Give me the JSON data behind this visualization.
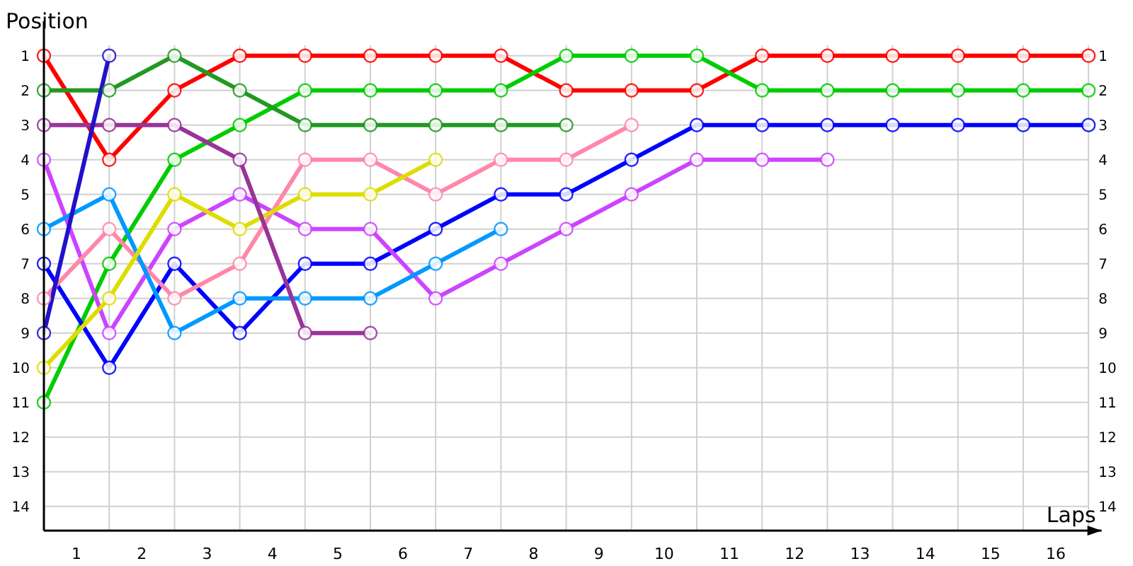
{
  "chart_data": {
    "type": "line",
    "xlabel": "Laps",
    "ylabel": "Position",
    "x": [
      0,
      1,
      2,
      3,
      4,
      5,
      6,
      7,
      8,
      9,
      10,
      11,
      12,
      13,
      14,
      15,
      16
    ],
    "xlim": [
      0,
      16.2
    ],
    "xticks": [
      {
        "value": 0,
        "label": null
      },
      {
        "value": 0.5,
        "label": "1"
      },
      {
        "value": 1,
        "label": null
      },
      {
        "value": 1.5,
        "label": "2"
      },
      {
        "value": 2,
        "label": null
      },
      {
        "value": 2.5,
        "label": "3"
      },
      {
        "value": 3,
        "label": null
      },
      {
        "value": 3.5,
        "label": "4"
      },
      {
        "value": 4,
        "label": null
      },
      {
        "value": 4.5,
        "label": "5"
      },
      {
        "value": 5,
        "label": null
      },
      {
        "value": 5.5,
        "label": "6"
      },
      {
        "value": 6,
        "label": null
      },
      {
        "value": 6.5,
        "label": "7"
      },
      {
        "value": 7,
        "label": null
      },
      {
        "value": 7.5,
        "label": "8"
      },
      {
        "value": 8,
        "label": null
      },
      {
        "value": 8.5,
        "label": "9"
      },
      {
        "value": 9,
        "label": null
      },
      {
        "value": 9.5,
        "label": "10"
      },
      {
        "value": 10,
        "label": null
      },
      {
        "value": 10.5,
        "label": "11"
      },
      {
        "value": 11,
        "label": null
      },
      {
        "value": 11.5,
        "label": "12"
      },
      {
        "value": 12,
        "label": null
      },
      {
        "value": 12.5,
        "label": "13"
      },
      {
        "value": 13,
        "label": null
      },
      {
        "value": 13.5,
        "label": "14"
      },
      {
        "value": 14,
        "label": null
      },
      {
        "value": 14.5,
        "label": "15"
      },
      {
        "value": 15,
        "label": null
      },
      {
        "value": 15.5,
        "label": "16"
      },
      {
        "value": 16,
        "label": null
      }
    ],
    "ylim": [
      14.7,
      0
    ],
    "yticks": [
      1,
      2,
      3,
      4,
      5,
      6,
      7,
      8,
      9,
      10,
      11,
      12,
      13,
      14
    ],
    "y2lim": [
      14.7,
      0
    ],
    "y2ticks": [
      1,
      2,
      3,
      4,
      5,
      6,
      7,
      8,
      9,
      10,
      11,
      12,
      13,
      14
    ],
    "grid": true,
    "marker": "circle",
    "line_style": "solid",
    "series": [
      {
        "color": "#ff0000",
        "values": [
          1,
          4,
          2,
          1,
          1,
          1,
          1,
          1,
          2,
          2,
          2,
          1,
          1,
          1,
          1,
          1,
          1
        ]
      },
      {
        "color": "#00cc00",
        "values": [
          11,
          7,
          4,
          3,
          2,
          2,
          2,
          2,
          1,
          1,
          1,
          2,
          2,
          2,
          2,
          2,
          2
        ]
      },
      {
        "color": "#0000ff",
        "values": [
          7,
          10,
          7,
          9,
          7,
          7,
          6,
          5,
          5,
          4,
          3,
          3,
          3,
          3,
          3,
          3,
          3
        ]
      },
      {
        "color": "#cc44ff",
        "values": [
          4,
          9,
          6,
          5,
          6,
          6,
          8,
          7,
          6,
          5,
          4,
          4,
          4,
          null,
          null,
          null,
          null
        ]
      },
      {
        "color": "#ff88aa",
        "values": [
          8,
          6,
          8,
          7,
          4,
          4,
          5,
          4,
          4,
          3,
          null,
          null,
          null,
          null,
          null,
          null,
          null
        ]
      },
      {
        "color": "#229922",
        "values": [
          2,
          2,
          1,
          2,
          3,
          3,
          3,
          3,
          3,
          null,
          null,
          null,
          null,
          null,
          null,
          null,
          null
        ]
      },
      {
        "color": "#0099ff",
        "values": [
          6,
          5,
          9,
          8,
          8,
          8,
          7,
          6,
          null,
          null,
          null,
          null,
          null,
          null,
          null,
          null,
          null
        ]
      },
      {
        "color": "#dddd00",
        "values": [
          10,
          8,
          5,
          6,
          5,
          5,
          4,
          null,
          null,
          null,
          null,
          null,
          null,
          null,
          null,
          null,
          null
        ]
      },
      {
        "color": "#993399",
        "values": [
          3,
          3,
          3,
          4,
          9,
          9,
          null,
          null,
          null,
          null,
          null,
          null,
          null,
          null,
          null,
          null,
          null
        ]
      },
      {
        "color": "#2211cc",
        "values": [
          9,
          1,
          null,
          null,
          null,
          null,
          null,
          null,
          null,
          null,
          null,
          null,
          null,
          null,
          null,
          null,
          null
        ]
      }
    ]
  }
}
